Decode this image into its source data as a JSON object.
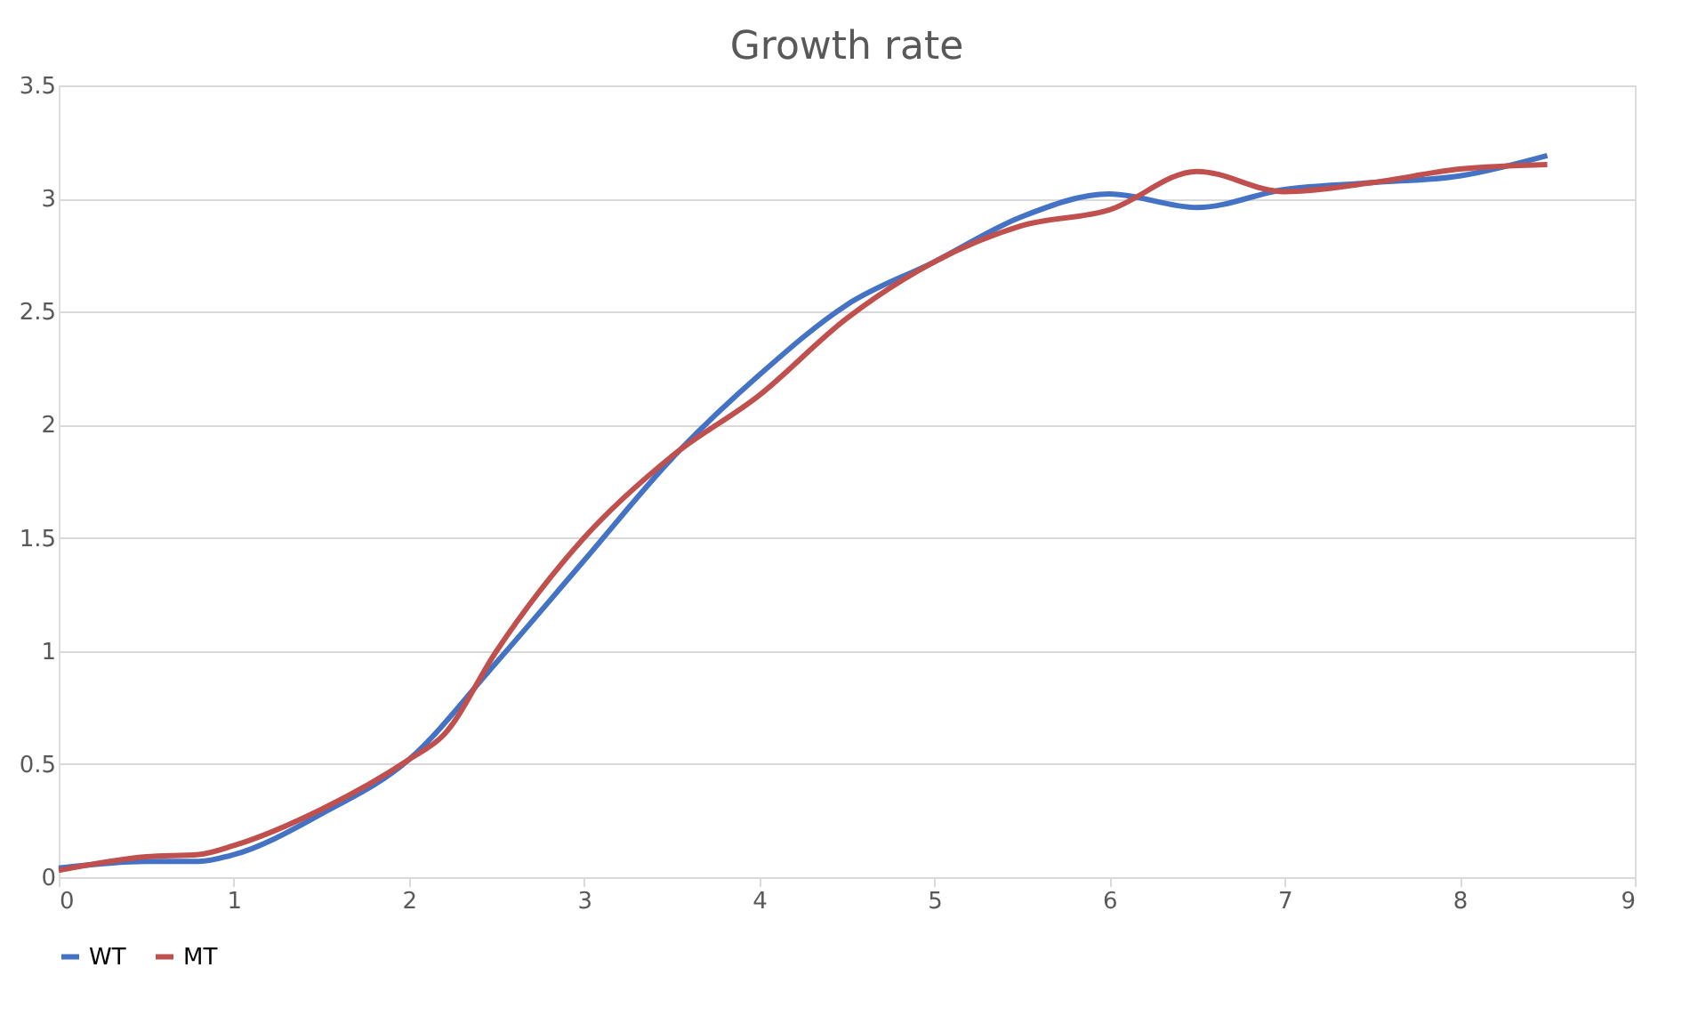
{
  "chart_data": {
    "type": "line",
    "title": "Growth rate",
    "xlim": [
      0,
      9
    ],
    "xticks": [
      0,
      1,
      2,
      3,
      4,
      5,
      6,
      7,
      8,
      9
    ],
    "ylim": [
      0,
      3.5
    ],
    "yticks": [
      0,
      0.5,
      1,
      1.5,
      2,
      2.5,
      3,
      3.5
    ],
    "grid": "y",
    "legend": "bottom",
    "marker": "none",
    "line_style": "solid",
    "series": [
      {
        "name": "WT",
        "color": "#4472c4",
        "x": [
          0,
          0.5,
          0.8,
          1,
          1.5,
          2,
          2.5,
          3,
          3.5,
          4,
          4.5,
          5,
          5.5,
          6,
          6.5,
          7,
          7.5,
          8,
          8.5
        ],
        "values": [
          0.04,
          0.07,
          0.07,
          0.1,
          0.28,
          0.52,
          0.95,
          1.4,
          1.85,
          2.22,
          2.53,
          2.72,
          2.92,
          3.02,
          2.96,
          3.04,
          3.07,
          3.1,
          3.19
        ]
      },
      {
        "name": "MT",
        "color": "#c0504d",
        "x": [
          0,
          0.5,
          0.8,
          1,
          1.5,
          2,
          2.2,
          2.5,
          3,
          3.5,
          4,
          4.5,
          5,
          5.5,
          6,
          6.5,
          7,
          7.5,
          8,
          8.5
        ],
        "values": [
          0.03,
          0.09,
          0.1,
          0.14,
          0.3,
          0.52,
          0.63,
          1.0,
          1.5,
          1.86,
          2.13,
          2.47,
          2.72,
          2.88,
          2.95,
          3.12,
          3.03,
          3.07,
          3.13,
          3.15
        ]
      }
    ]
  }
}
